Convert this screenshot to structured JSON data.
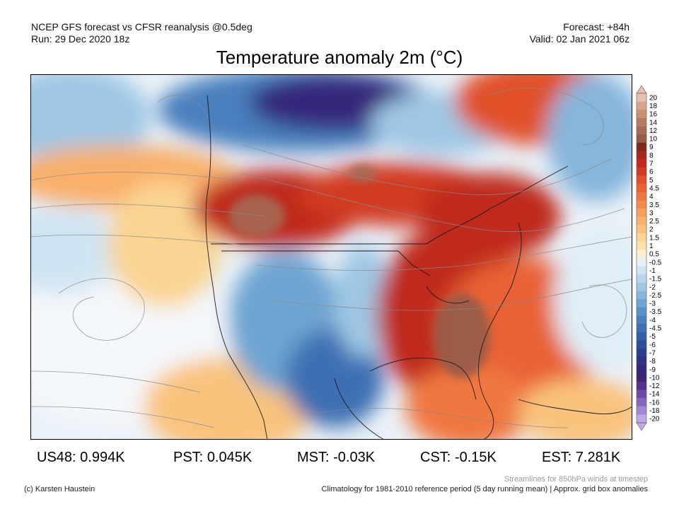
{
  "header": {
    "line1_left": "NCEP GFS forecast vs CFSR reanalysis @0.5deg",
    "line2_left": "Run: 29 Dec 2020 18z",
    "line1_right": "Forecast: +84h",
    "line2_right": "Valid: 02 Jan 2021 06z"
  },
  "title": "Temperature anomaly 2m (°C)",
  "colorbar": {
    "labels": [
      "20",
      "18",
      "16",
      "14",
      "12",
      "10",
      "9",
      "8",
      "7",
      "6",
      "5",
      "4.5",
      "4",
      "3.5",
      "3",
      "2.5",
      "2",
      "1.5",
      "1",
      "0.5",
      "-0.5",
      "-1",
      "-1.5",
      "-2",
      "-2.5",
      "-3",
      "-3.5",
      "-4",
      "-4.5",
      "-5",
      "-6",
      "-7",
      "-8",
      "-9",
      "-10",
      "-12",
      "-14",
      "-16",
      "-18",
      "-20"
    ],
    "colors": [
      "#e8c1ae",
      "#d9a68d",
      "#c98f77",
      "#b77a63",
      "#a66b55",
      "#955c48",
      "#7e2a1a",
      "#a4281d",
      "#bf2b1f",
      "#d23a24",
      "#e0512c",
      "#e86235",
      "#ef7740",
      "#f3894b",
      "#f69e5a",
      "#f8b06a",
      "#f9c37d",
      "#fad492",
      "#fbe2aa",
      "#fcefd0",
      "#e6f1f8",
      "#cfe4f2",
      "#b7d6ec",
      "#9fc7e4",
      "#86b6dc",
      "#6ea4d2",
      "#5a92c8",
      "#4a80bd",
      "#3d6fb2",
      "#335fa6",
      "#2d4f9a",
      "#2a408e",
      "#2d3283",
      "#34267a",
      "#3e2373",
      "#55338c",
      "#6c4ba6",
      "#8667be",
      "#a487d4",
      "#c1a9e6"
    ]
  },
  "stats": [
    {
      "label": "US48:",
      "value": "0.994K"
    },
    {
      "label": "PST:",
      "value": "0.045K"
    },
    {
      "label": "MST:",
      "value": "-0.03K"
    },
    {
      "label": "CST:",
      "value": "-0.15K"
    },
    {
      "label": "EST:",
      "value": "7.281K"
    }
  ],
  "footer": {
    "credit": "(c) Karsten Haustein",
    "streamlines": "Streamlines for 850hPa winds at timestep",
    "climatology": "Climatology for 1981-2010 reference period (5 day running mean) | Approx. grid box anomalies"
  }
}
